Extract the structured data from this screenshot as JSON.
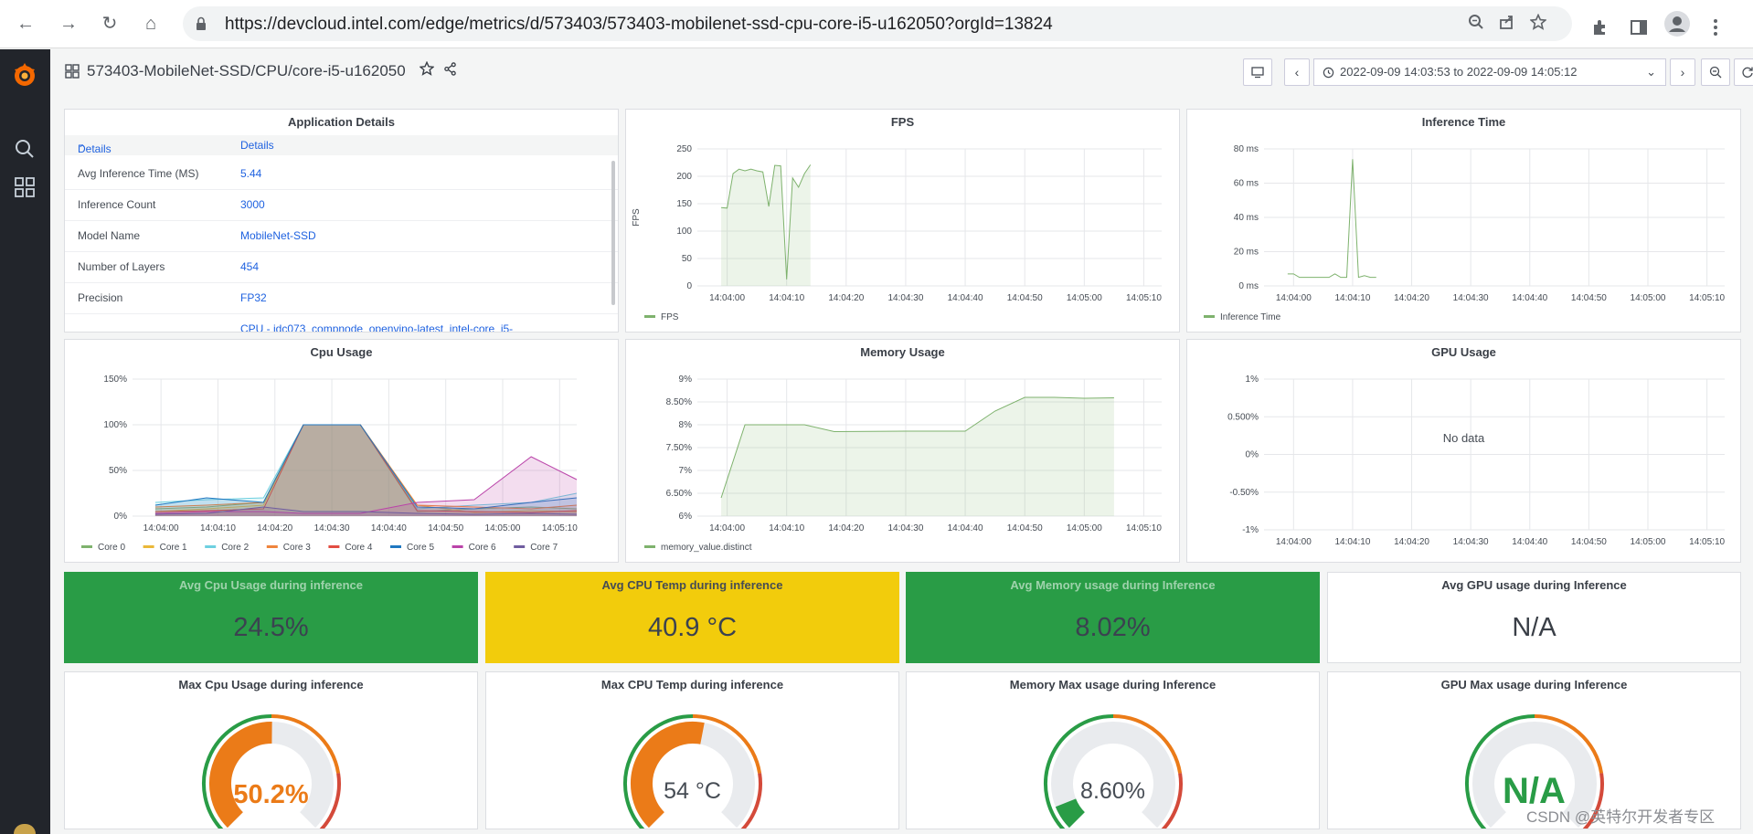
{
  "browser": {
    "url": "https://devcloud.intel.com/edge/metrics/d/573403/573403-mobilenet-ssd-cpu-core-i5-u162050?orgId=13824",
    "nav_back": "←",
    "nav_forward": "→",
    "nav_reload": "↻",
    "nav_home": "⌂"
  },
  "icons": [
    "back-icon",
    "forward-icon",
    "reload-icon",
    "home-icon",
    "lock-icon",
    "zoom-icon",
    "share-icon",
    "bookmark-star-icon",
    "extensions-icon",
    "side-panel-icon",
    "profile-icon",
    "kebab-menu-icon",
    "grafana-logo-icon",
    "search-icon",
    "dashboards-icon"
  ],
  "header": {
    "title": "573403-MobileNet-SSD/CPU/core-i5-u162050",
    "time_range": "2022-09-09 14:03:53 to 2022-09-09 14:05:12"
  },
  "colors": {
    "green": "#299c46",
    "yellow": "#f2cc0c",
    "orange": "#eb7b18",
    "red": "#d44a3a",
    "link_blue": "#1f62e0",
    "sidebar": "#22252b",
    "line_green": "#7eb26d"
  },
  "app_details": {
    "title": "Application Details",
    "col1": "Details",
    "col2": "Details",
    "rows": [
      {
        "k": "Avg Inference Time (MS)",
        "v": "5.44"
      },
      {
        "k": "Inference Count",
        "v": "3000"
      },
      {
        "k": "Model Name",
        "v": "MobileNet-SSD"
      },
      {
        "k": "Number of Layers",
        "v": "454"
      },
      {
        "k": "Precision",
        "v": "FP32"
      },
      {
        "k": "",
        "v": "CPU - idc073_compnode_openvino-latest_intel-core_i5-"
      }
    ]
  },
  "fps": {
    "title": "FPS",
    "ylabel": "FPS",
    "legend": "FPS",
    "y_ticks": [
      "250",
      "200",
      "150",
      "100",
      "50",
      "0"
    ],
    "x_ticks": [
      "14:04:00",
      "14:04:10",
      "14:04:20",
      "14:04:30",
      "14:04:40",
      "14:04:50",
      "14:05:00",
      "14:05:10"
    ]
  },
  "inference": {
    "title": "Inference Time",
    "legend": "Inference Time",
    "y_ticks": [
      "80 ms",
      "60 ms",
      "40 ms",
      "20 ms",
      "0 ms"
    ],
    "x_ticks": [
      "14:04:00",
      "14:04:10",
      "14:04:20",
      "14:04:30",
      "14:04:40",
      "14:04:50",
      "14:05:00",
      "14:05:10"
    ]
  },
  "cpu": {
    "title": "Cpu Usage",
    "y_ticks": [
      "150%",
      "100%",
      "50%",
      "0%"
    ],
    "x_ticks": [
      "14:04:00",
      "14:04:10",
      "14:04:20",
      "14:04:30",
      "14:04:40",
      "14:04:50",
      "14:05:00",
      "14:05:10"
    ],
    "legend": [
      {
        "name": "Core 0",
        "color": "#7eb26d"
      },
      {
        "name": "Core 1",
        "color": "#eab839"
      },
      {
        "name": "Core 2",
        "color": "#6ed0e0"
      },
      {
        "name": "Core 3",
        "color": "#ef843c"
      },
      {
        "name": "Core 4",
        "color": "#e24d42"
      },
      {
        "name": "Core 5",
        "color": "#1f78c1"
      },
      {
        "name": "Core 6",
        "color": "#ba43a9"
      },
      {
        "name": "Core 7",
        "color": "#705da0"
      }
    ]
  },
  "memory": {
    "title": "Memory Usage",
    "legend": "memory_value.distinct",
    "y_ticks": [
      "9%",
      "8.50%",
      "8%",
      "7.50%",
      "7%",
      "6.50%",
      "6%"
    ],
    "x_ticks": [
      "14:04:00",
      "14:04:10",
      "14:04:20",
      "14:04:30",
      "14:04:40",
      "14:04:50",
      "14:05:00",
      "14:05:10"
    ]
  },
  "gpu": {
    "title": "GPU Usage",
    "no_data": "No data",
    "y_ticks": [
      "1%",
      "0.500%",
      "0%",
      "-0.50%",
      "-1%"
    ],
    "x_ticks": [
      "14:04:00",
      "14:04:10",
      "14:04:20",
      "14:04:30",
      "14:04:40",
      "14:04:50",
      "14:05:00",
      "14:05:10"
    ]
  },
  "stats": [
    {
      "title": "Avg Cpu Usage during inference",
      "value": "24.5%"
    },
    {
      "title": "Avg CPU Temp during inference",
      "value": "40.9 °C"
    },
    {
      "title": "Avg Memory usage during Inference",
      "value": "8.02%"
    },
    {
      "title": "Avg GPU usage during Inference",
      "value": "N/A"
    }
  ],
  "gauges": [
    {
      "title": "Max Cpu Usage during inference",
      "value": "50.2%",
      "fraction": 0.502,
      "value_color": "#eb7b18"
    },
    {
      "title": "Max CPU Temp during inference",
      "value": "54 °C",
      "fraction": 0.54,
      "value_color": "#464c54"
    },
    {
      "title": "Memory Max usage during Inference",
      "value": "8.60%",
      "fraction": 0.086,
      "value_color": "#464c54"
    },
    {
      "title": "GPU Max usage during Inference",
      "value": "N/A",
      "fraction": 0,
      "value_color": "#299c46"
    }
  ],
  "chart_data": [
    {
      "type": "line",
      "title": "FPS",
      "ylabel": "FPS",
      "ylim": [
        0,
        250
      ],
      "series": [
        {
          "name": "FPS",
          "x": [
            "14:03:59",
            "14:04:00",
            "14:04:01",
            "14:04:02",
            "14:04:03",
            "14:04:04",
            "14:04:05",
            "14:04:06",
            "14:04:07",
            "14:04:08",
            "14:04:09",
            "14:04:10",
            "14:04:11",
            "14:04:12",
            "14:04:13",
            "14:04:14"
          ],
          "values": [
            143,
            142,
            205,
            213,
            210,
            213,
            210,
            208,
            145,
            220,
            219,
            12,
            197,
            180,
            205,
            221
          ]
        }
      ]
    },
    {
      "type": "line",
      "title": "Inference Time",
      "ylim": [
        0,
        80
      ],
      "series": [
        {
          "name": "Inference Time",
          "x": [
            "14:03:59",
            "14:04:00",
            "14:04:01",
            "14:04:02",
            "14:04:03",
            "14:04:04",
            "14:04:05",
            "14:04:06",
            "14:04:07",
            "14:04:08",
            "14:04:09",
            "14:04:10",
            "14:04:11",
            "14:04:12",
            "14:04:13",
            "14:04:14"
          ],
          "values": [
            7,
            7,
            5,
            5,
            5,
            5,
            5,
            5,
            7,
            5,
            5,
            74,
            5,
            6,
            5,
            5
          ]
        }
      ]
    },
    {
      "type": "area",
      "title": "Cpu Usage",
      "ylim": [
        0,
        150
      ],
      "series": [
        {
          "name": "Core 0",
          "x": [
            "14:03:59",
            "14:04:08",
            "14:04:18",
            "14:04:25",
            "14:04:35",
            "14:04:45",
            "14:04:55",
            "14:05:05",
            "14:05:13"
          ],
          "values": [
            8,
            10,
            15,
            100,
            100,
            5,
            8,
            10,
            8
          ]
        },
        {
          "name": "Core 1",
          "x": [
            "14:03:59",
            "14:04:08",
            "14:04:18",
            "14:04:25",
            "14:04:35",
            "14:04:45",
            "14:04:55",
            "14:05:05",
            "14:05:13"
          ],
          "values": [
            5,
            8,
            12,
            100,
            100,
            12,
            4,
            6,
            5
          ]
        },
        {
          "name": "Core 2",
          "x": [
            "14:03:59",
            "14:04:08",
            "14:04:18",
            "14:04:25",
            "14:04:35",
            "14:04:45",
            "14:04:55",
            "14:05:05",
            "14:05:13"
          ],
          "values": [
            15,
            18,
            20,
            100,
            100,
            8,
            12,
            15,
            25
          ]
        },
        {
          "name": "Core 3",
          "x": [
            "14:03:59",
            "14:04:08",
            "14:04:18",
            "14:04:25",
            "14:04:35",
            "14:04:45",
            "14:04:55",
            "14:05:05",
            "14:05:13"
          ],
          "values": [
            10,
            12,
            15,
            100,
            100,
            12,
            10,
            8,
            12
          ]
        },
        {
          "name": "Core 4",
          "x": [
            "14:03:59",
            "14:04:08",
            "14:04:18",
            "14:04:25",
            "14:04:35",
            "14:04:45",
            "14:04:55",
            "14:05:05",
            "14:05:13"
          ],
          "values": [
            5,
            6,
            8,
            100,
            100,
            6,
            5,
            4,
            6
          ]
        },
        {
          "name": "Core 5",
          "x": [
            "14:03:59",
            "14:04:08",
            "14:04:18",
            "14:04:25",
            "14:04:35",
            "14:04:45",
            "14:04:55",
            "14:05:05",
            "14:05:13"
          ],
          "values": [
            12,
            20,
            15,
            100,
            100,
            10,
            8,
            15,
            20
          ]
        },
        {
          "name": "Core 6",
          "x": [
            "14:03:59",
            "14:04:08",
            "14:04:18",
            "14:04:25",
            "14:04:35",
            "14:04:45",
            "14:04:55",
            "14:05:05",
            "14:05:13"
          ],
          "values": [
            3,
            5,
            5,
            3,
            3,
            15,
            18,
            65,
            40
          ]
        },
        {
          "name": "Core 7",
          "x": [
            "14:03:59",
            "14:04:08",
            "14:04:18",
            "14:04:25",
            "14:04:35",
            "14:04:45",
            "14:04:55",
            "14:05:05",
            "14:05:13"
          ],
          "values": [
            2,
            3,
            10,
            5,
            5,
            3,
            2,
            3,
            2
          ]
        }
      ]
    },
    {
      "type": "area",
      "title": "Memory Usage",
      "ylim": [
        6,
        9
      ],
      "series": [
        {
          "name": "memory_value.distinct",
          "x": [
            "14:03:59",
            "14:04:03",
            "14:04:13",
            "14:04:18",
            "14:04:30",
            "14:04:40",
            "14:04:45",
            "14:04:50",
            "14:04:55",
            "14:05:00",
            "14:05:05"
          ],
          "values": [
            6.4,
            8.0,
            8.0,
            7.85,
            7.86,
            7.86,
            8.3,
            8.6,
            8.6,
            8.58,
            8.59
          ]
        }
      ]
    },
    {
      "type": "line",
      "title": "GPU Usage",
      "ylim": [
        -1,
        1
      ],
      "series": []
    }
  ]
}
